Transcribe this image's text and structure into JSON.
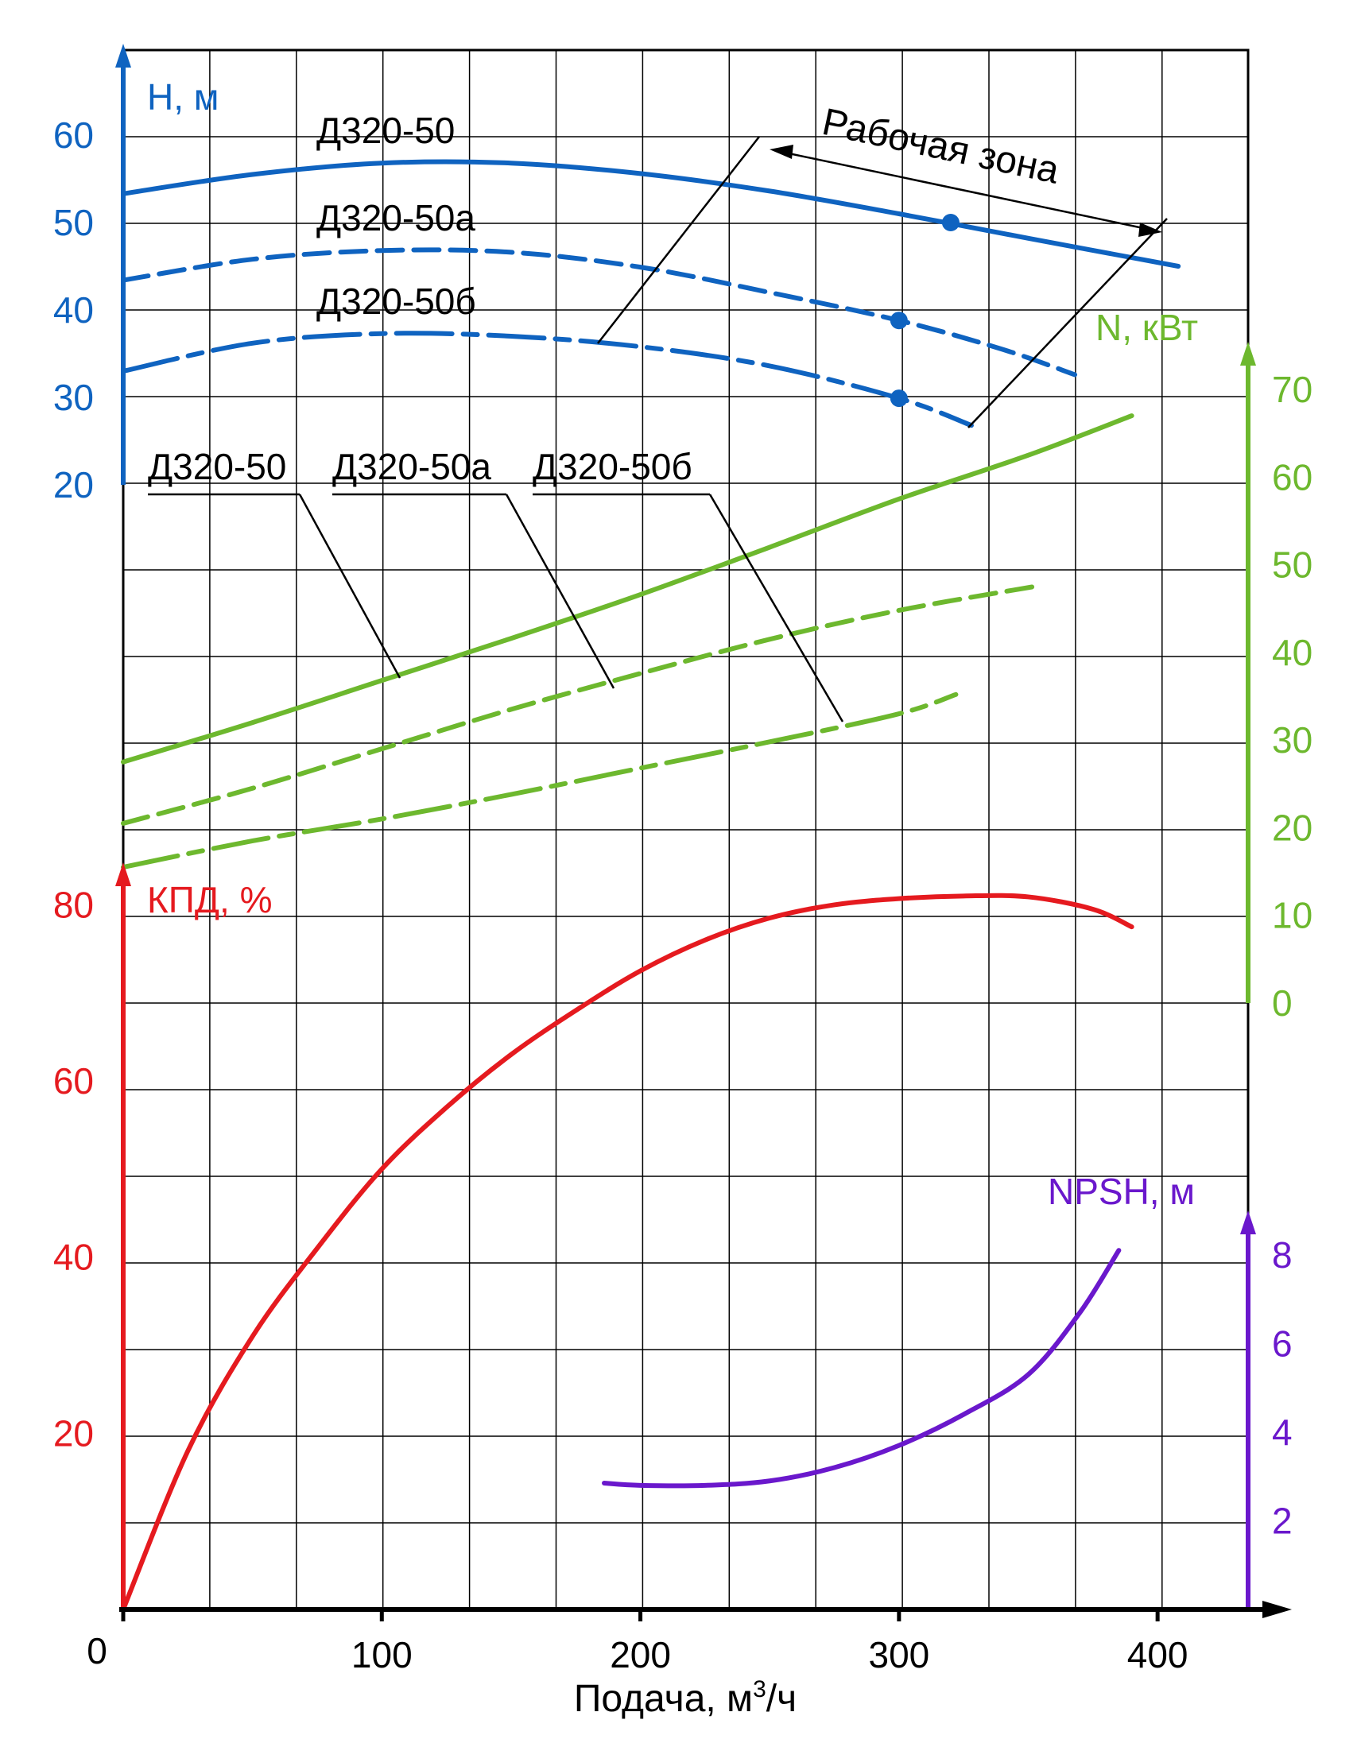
{
  "colors": {
    "head": "#0f63c0",
    "power": "#6db82e",
    "efficiency": "#e51a1f",
    "npsh": "#6a18cc",
    "grid": "#000000"
  },
  "chart_data": {
    "type": "line",
    "x_label_prefix": "Подача, м",
    "x_label_sup": "3",
    "x_label_suffix": "/ч",
    "x_ticks": [
      "0",
      "100",
      "200",
      "300",
      "400"
    ],
    "x_range": [
      0,
      435
    ],
    "axes": {
      "head": {
        "label": "H, м",
        "ticks": [
          "20",
          "30",
          "40",
          "50",
          "60"
        ],
        "range": [
          20,
          70
        ]
      },
      "power": {
        "label": "N, кВт",
        "ticks": [
          "0",
          "10",
          "20",
          "30",
          "40",
          "50",
          "60",
          "70"
        ],
        "range": [
          0,
          70
        ]
      },
      "efficiency": {
        "label": "КПД, %",
        "ticks": [
          "20",
          "40",
          "60",
          "80"
        ],
        "range": [
          0,
          85
        ]
      },
      "npsh": {
        "label": "NPSH, м",
        "ticks": [
          "2",
          "4",
          "6",
          "8"
        ],
        "range": [
          0,
          9
        ]
      }
    },
    "series": [
      {
        "name": "Д320-50",
        "group": "head",
        "dash": "solid",
        "x": [
          0,
          50,
          100,
          150,
          200,
          250,
          300,
          350,
          408
        ],
        "y": [
          53.3,
          55.5,
          56.8,
          56.8,
          55.6,
          53.6,
          51.0,
          48.2,
          45.0
        ]
      },
      {
        "name": "Д320-50а",
        "group": "head",
        "dash": "dashed",
        "x": [
          0,
          50,
          100,
          150,
          200,
          250,
          300,
          340,
          368
        ],
        "y": [
          43.4,
          45.8,
          46.8,
          46.6,
          44.9,
          42.0,
          38.8,
          35.5,
          32.6
        ]
      },
      {
        "name": "Д320-50б",
        "group": "head",
        "dash": "dashdot",
        "x": [
          0,
          50,
          100,
          150,
          200,
          250,
          300,
          328
        ],
        "y": [
          33.0,
          36.2,
          37.3,
          37.0,
          35.8,
          33.6,
          29.9,
          26.8
        ]
      },
      {
        "name": "Д320-50",
        "group": "power",
        "dash": "solid",
        "x": [
          0,
          50,
          100,
          150,
          200,
          250,
          300,
          350,
          390
        ],
        "y": [
          27.5,
          32.0,
          36.8,
          41.6,
          46.6,
          52.0,
          57.5,
          62.5,
          67.0
        ]
      },
      {
        "name": "Д320-50а",
        "group": "power",
        "dash": "dashed",
        "x": [
          0,
          50,
          100,
          150,
          200,
          250,
          300,
          352
        ],
        "y": [
          20.5,
          24.5,
          29.0,
          33.5,
          37.6,
          41.5,
          44.8,
          47.5
        ]
      },
      {
        "name": "Д320-50б",
        "group": "power",
        "dash": "dashdot",
        "x": [
          0,
          50,
          100,
          150,
          200,
          250,
          300,
          322
        ],
        "y": [
          15.5,
          18.5,
          21.0,
          23.8,
          26.8,
          29.8,
          33.0,
          35.2
        ]
      },
      {
        "name": "",
        "group": "efficiency",
        "dash": "solid",
        "x": [
          0,
          25,
          50,
          75,
          100,
          125,
          150,
          175,
          200,
          225,
          250,
          275,
          300,
          325,
          350,
          375,
          390
        ],
        "y": [
          0,
          18,
          31,
          41,
          50,
          57,
          63,
          68,
          72.5,
          76,
          78.5,
          80,
          80.7,
          81,
          80.9,
          79.5,
          77.5
        ]
      },
      {
        "name": "",
        "group": "npsh",
        "dash": "solid",
        "x": [
          186,
          200,
          225,
          250,
          275,
          300,
          325,
          350,
          370,
          385
        ],
        "y": [
          2.85,
          2.8,
          2.8,
          2.9,
          3.2,
          3.7,
          4.4,
          5.3,
          6.7,
          8.1
        ]
      }
    ],
    "operating_points": [
      {
        "series": "Д320-50",
        "x": 320,
        "y": 50
      },
      {
        "series": "Д320-50а",
        "x": 300,
        "y": 38.8
      },
      {
        "series": "Д320-50б",
        "x": 300,
        "y": 29.9
      }
    ],
    "head_series_labels": [
      "Д320-50",
      "Д320-50а",
      "Д320-50б"
    ],
    "power_series_labels": [
      "Д320-50",
      "Д320-50а",
      "Д320-50б"
    ],
    "annotation": "Рабочая зона",
    "grid": true
  }
}
